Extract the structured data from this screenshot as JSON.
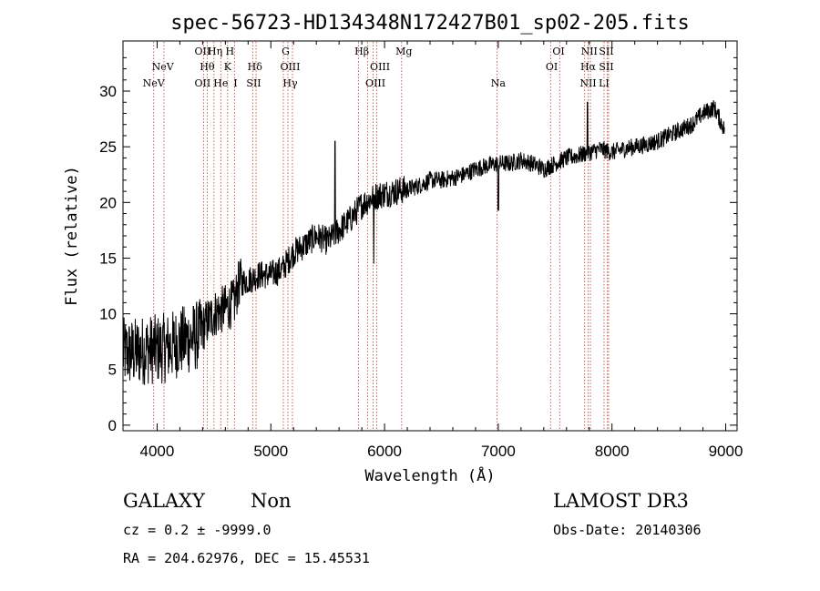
{
  "chart_data": {
    "type": "line",
    "title": "spec-56723-HD134348N172427B01_sp02-205.fits",
    "xlabel": "Wavelength (Å)",
    "ylabel": "Flux (relative)",
    "xlim": [
      3700,
      9100
    ],
    "ylim": [
      -0.5,
      34.5
    ],
    "xticks": [
      4000,
      5000,
      6000,
      7000,
      8000,
      9000
    ],
    "yticks": [
      0,
      5,
      10,
      15,
      20,
      25,
      30
    ],
    "series": [
      {
        "name": "spectrum",
        "x": [
          3700,
          3800,
          3900,
          4000,
          4100,
          4200,
          4300,
          4380,
          4420,
          4500,
          4600,
          4680,
          4720,
          4800,
          4900,
          5000,
          5100,
          5200,
          5300,
          5400,
          5500,
          5600,
          5700,
          5800,
          5900,
          6000,
          6100,
          6200,
          6300,
          6400,
          6500,
          6600,
          6700,
          6800,
          6900,
          7000,
          7100,
          7200,
          7300,
          7400,
          7500,
          7600,
          7700,
          7800,
          7900,
          8000,
          8100,
          8200,
          8300,
          8400,
          8500,
          8600,
          8700,
          8800,
          8900,
          8990
        ],
        "y": [
          6.5,
          6.5,
          6.8,
          6.8,
          7.0,
          7.5,
          7.8,
          8.2,
          9.0,
          10.0,
          10.5,
          11.0,
          12.8,
          13.0,
          13.5,
          13.5,
          14.0,
          15.5,
          16.2,
          17.0,
          16.5,
          17.5,
          18.5,
          19.8,
          20.5,
          20.8,
          21.0,
          21.2,
          21.5,
          22.0,
          22.0,
          22.2,
          22.5,
          23.0,
          23.3,
          23.5,
          23.5,
          23.8,
          23.5,
          23.0,
          23.5,
          24.0,
          24.2,
          24.5,
          24.8,
          24.5,
          24.8,
          25.0,
          25.2,
          25.5,
          26.0,
          26.5,
          27.0,
          28.0,
          28.5,
          26.5
        ]
      }
    ],
    "line_markers": [
      {
        "label": "NeV",
        "x": 3970,
        "row": 3
      },
      {
        "label": "NeV",
        "x": 4050,
        "row": 2
      },
      {
        "label": "OII",
        "x": 4400,
        "row": 1
      },
      {
        "label": "OII",
        "x": 4400,
        "row": 3
      },
      {
        "label": "Hθ",
        "x": 4440,
        "row": 2
      },
      {
        "label": "Hη",
        "x": 4510,
        "row": 1
      },
      {
        "label": "He",
        "x": 4560,
        "row": 3
      },
      {
        "label": "H",
        "x": 4640,
        "row": 1
      },
      {
        "label": "K",
        "x": 4620,
        "row": 2
      },
      {
        "label": "I",
        "x": 4690,
        "row": 3
      },
      {
        "label": "Hδ",
        "x": 4860,
        "row": 2
      },
      {
        "label": "SII",
        "x": 4850,
        "row": 3
      },
      {
        "label": "G",
        "x": 5130,
        "row": 1
      },
      {
        "label": "OIII",
        "x": 5170,
        "row": 2
      },
      {
        "label": "Hγ",
        "x": 5170,
        "row": 3
      },
      {
        "label": "Hβ",
        "x": 5800,
        "row": 1
      },
      {
        "label": "OIII",
        "x": 5960,
        "row": 2
      },
      {
        "label": "OIII",
        "x": 5920,
        "row": 3
      },
      {
        "label": "Mg",
        "x": 6170,
        "row": 1
      },
      {
        "label": "Na",
        "x": 7000,
        "row": 3
      },
      {
        "label": "OI",
        "x": 7530,
        "row": 1
      },
      {
        "label": "OI",
        "x": 7470,
        "row": 2
      },
      {
        "label": "NII",
        "x": 7800,
        "row": 1
      },
      {
        "label": "Hα",
        "x": 7790,
        "row": 2
      },
      {
        "label": "NII",
        "x": 7790,
        "row": 3
      },
      {
        "label": "SII",
        "x": 7950,
        "row": 1
      },
      {
        "label": "SII",
        "x": 7950,
        "row": 2
      },
      {
        "label": "LI",
        "x": 7930,
        "row": 3
      }
    ],
    "marker_lines": [
      3970,
      4060,
      4410,
      4440,
      4500,
      4560,
      4620,
      4680,
      4840,
      4870,
      5110,
      5150,
      5190,
      5770,
      5850,
      5900,
      5930,
      6150,
      6990,
      7460,
      7540,
      7760,
      7790,
      7810,
      7930,
      7960,
      7970
    ],
    "colors": {
      "spectrum": "#000000",
      "markers": "#c0392b",
      "frame": "#000000"
    }
  },
  "info": {
    "class": "GALAXY",
    "subclass": "Non",
    "survey": "LAMOST DR3",
    "cz": "cz = 0.2 ± -9999.0",
    "obs_date": "Obs-Date: 20140306",
    "radec": "RA = 204.62976, DEC =  15.45531"
  }
}
